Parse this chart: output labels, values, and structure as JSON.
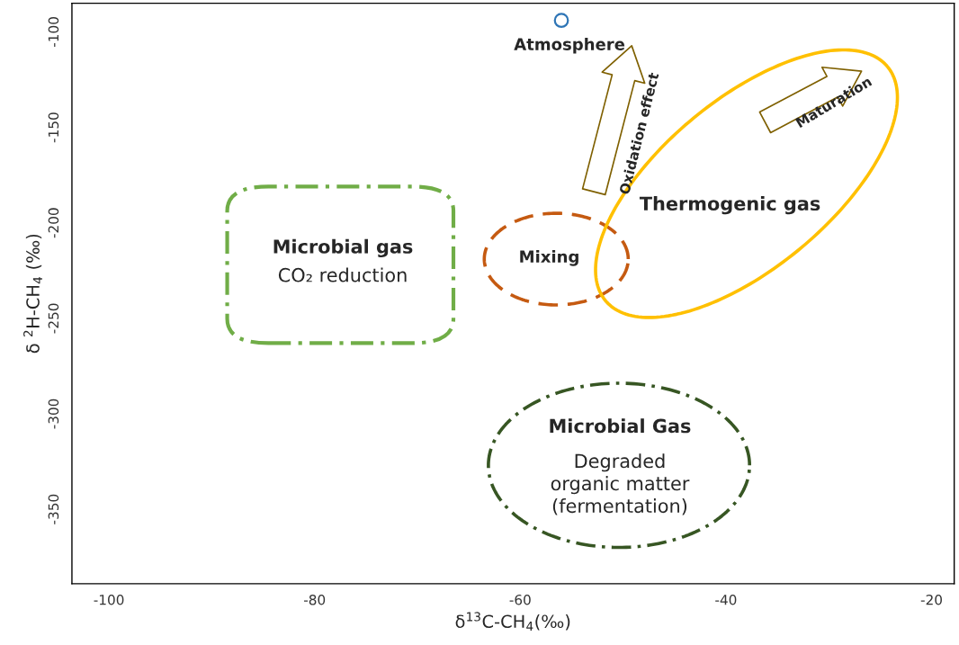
{
  "chart_data": {
    "type": "scatter",
    "x": [
      -56
    ],
    "series": [
      {
        "color": "#2e75b6",
        "values": [
          -94
        ]
      }
    ],
    "marker": "circle",
    "xlabel": "δ$^{13}$C-CH$_{4}$(‰)",
    "ylabel": "δ $^{2}$H-CH$_{4}$ (‰)",
    "xlim": [
      -103.6,
      -17.8
    ],
    "ylim": [
      -389,
      -85
    ],
    "xticks": [
      -100,
      -80,
      -60,
      -40,
      -20
    ],
    "yticks": [
      -100,
      -150,
      -200,
      -250,
      -300,
      -350
    ],
    "grid": false,
    "annotations": [
      "Atmosphere",
      "Oxidation effect",
      "Maturation",
      "Thermogenic gas",
      "Mixing",
      "Microbial gas",
      "CO₂ reduction",
      "Microbial Gas",
      "Degraded\norganic matter\n(fermentation)"
    ]
  }
}
